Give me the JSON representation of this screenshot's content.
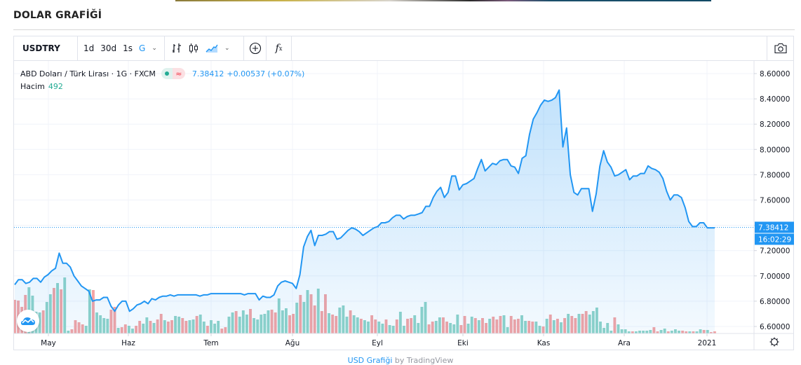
{
  "page": {
    "title": "DOLAR GRAFİĞİ"
  },
  "toolbar": {
    "symbol": "USDTRY",
    "intervals": [
      "1d",
      "30d",
      "1s",
      "G"
    ],
    "active_interval": "G",
    "chart_type_icons": [
      "bar-chart-icon",
      "candlestick-icon",
      "area-chart-icon"
    ],
    "add_indicator_icon": "plus-circle-icon",
    "fx_label": "f",
    "fx_sub": "x",
    "camera_icon": "camera-icon"
  },
  "legend": {
    "symbol_desc": "ABD Doları / Türk Lirası · 1G · FXCM",
    "last_price": "7.38412",
    "change": "+0.00537 (+0.07%)",
    "volume_label": "Hacim",
    "volume_value": "492"
  },
  "price_axis": {
    "ticks": [
      "8.60000",
      "8.40000",
      "8.20000",
      "8.00000",
      "7.80000",
      "7.60000",
      "7.40000",
      "7.20000",
      "7.00000",
      "6.80000",
      "6.60000"
    ],
    "last_price_tag": "7.38412",
    "countdown_tag": "16:02:29"
  },
  "time_axis": {
    "labels": [
      "May",
      "Haz",
      "Tem",
      "Ağu",
      "Eyl",
      "Eki",
      "Kas",
      "Ara",
      "2021"
    ],
    "settings_icon": "gear-icon"
  },
  "footer": {
    "link_text": "USD Grafiği",
    "by_text": "by TradingView"
  },
  "colors": {
    "line": "#2196f3",
    "area_top": "rgba(33,150,243,0.28)",
    "area_bottom": "rgba(33,150,243,0.05)",
    "volume_up": "#8fd3c8",
    "volume_down": "#f4a3a3",
    "tag_bg": "#2196f3",
    "grid": "#f0f3fa"
  },
  "chart_data": {
    "type": "area",
    "title": "ABD Doları / Türk Lirası · 1G · FXCM",
    "xlabel": "",
    "ylabel": "",
    "ylim": [
      6.5,
      8.7
    ],
    "x_tick_labels": [
      "May",
      "Haz",
      "Tem",
      "Ağu",
      "Eyl",
      "Eki",
      "Kas",
      "Ara",
      "2021"
    ],
    "y_tick_labels": [
      "6.60000",
      "6.80000",
      "7.00000",
      "7.20000",
      "7.40000",
      "7.60000",
      "7.80000",
      "8.00000",
      "8.20000",
      "8.40000",
      "8.60000"
    ],
    "grid": true,
    "legend_position": "top-left",
    "last_value": 7.38412,
    "series": [
      {
        "name": "USDTRY close",
        "values": [
          6.93,
          6.97,
          6.97,
          6.94,
          6.95,
          6.98,
          6.98,
          6.95,
          6.99,
          7.01,
          7.04,
          7.06,
          7.18,
          7.1,
          7.1,
          7.07,
          7.0,
          6.96,
          6.92,
          6.9,
          6.88,
          6.8,
          6.81,
          6.81,
          6.83,
          6.83,
          6.76,
          6.72,
          6.77,
          6.8,
          6.8,
          6.72,
          6.74,
          6.77,
          6.78,
          6.8,
          6.78,
          6.82,
          6.81,
          6.83,
          6.84,
          6.84,
          6.85,
          6.84,
          6.85,
          6.85,
          6.85,
          6.85,
          6.85,
          6.85,
          6.84,
          6.85,
          6.85,
          6.86,
          6.86,
          6.86,
          6.86,
          6.86,
          6.86,
          6.86,
          6.86,
          6.86,
          6.85,
          6.86,
          6.86,
          6.86,
          6.81,
          6.84,
          6.83,
          6.83,
          6.85,
          6.92,
          6.95,
          6.96,
          6.95,
          6.94,
          6.9,
          7.01,
          7.23,
          7.31,
          7.36,
          7.24,
          7.32,
          7.32,
          7.33,
          7.35,
          7.35,
          7.29,
          7.3,
          7.33,
          7.36,
          7.38,
          7.37,
          7.35,
          7.32,
          7.34,
          7.36,
          7.38,
          7.39,
          7.42,
          7.42,
          7.43,
          7.46,
          7.48,
          7.48,
          7.45,
          7.47,
          7.48,
          7.48,
          7.49,
          7.5,
          7.55,
          7.55,
          7.62,
          7.67,
          7.7,
          7.62,
          7.66,
          7.79,
          7.79,
          7.68,
          7.72,
          7.73,
          7.75,
          7.77,
          7.85,
          7.92,
          7.83,
          7.86,
          7.89,
          7.88,
          7.91,
          7.92,
          7.92,
          7.87,
          7.86,
          7.81,
          7.93,
          7.95,
          8.12,
          8.24,
          8.29,
          8.35,
          8.39,
          8.38,
          8.39,
          8.41,
          8.47,
          8.02,
          8.17,
          7.8,
          7.66,
          7.64,
          7.69,
          7.69,
          7.69,
          7.51,
          7.65,
          7.87,
          7.99,
          7.9,
          7.86,
          7.79,
          7.8,
          7.82,
          7.84,
          7.76,
          7.79,
          7.79,
          7.81,
          7.81,
          7.87,
          7.85,
          7.84,
          7.82,
          7.77,
          7.67,
          7.6,
          7.64,
          7.64,
          7.62,
          7.54,
          7.43,
          7.39,
          7.39,
          7.42,
          7.42,
          7.38,
          7.38,
          7.38
        ]
      },
      {
        "name": "Hacim",
        "values": [
          48,
          47,
          38,
          55,
          66,
          54,
          31,
          30,
          33,
          45,
          56,
          65,
          72,
          63,
          80,
          4,
          6,
          19,
          16,
          13,
          11,
          63,
          62,
          30,
          26,
          22,
          21,
          34,
          38,
          8,
          9,
          13,
          11,
          7,
          11,
          18,
          14,
          23,
          18,
          15,
          20,
          28,
          19,
          17,
          19,
          25,
          24,
          22,
          18,
          19,
          20,
          25,
          27,
          17,
          11,
          19,
          14,
          18,
          7,
          9,
          24,
          30,
          32,
          24,
          33,
          27,
          35,
          22,
          20,
          27,
          28,
          33,
          34,
          30,
          50,
          33,
          36,
          26,
          28,
          44,
          55,
          45,
          62,
          56,
          40,
          64,
          32,
          56,
          29,
          27,
          25,
          37,
          40,
          24,
          33,
          26,
          23,
          21,
          19,
          17,
          26,
          20,
          17,
          14,
          20,
          12,
          11,
          20,
          31,
          11,
          21,
          22,
          26,
          15,
          38,
          45,
          13,
          17,
          18,
          23,
          23,
          17,
          15,
          13,
          27,
          12,
          25,
          14,
          24,
          22,
          19,
          22,
          15,
          21,
          24,
          20,
          25,
          26,
          9,
          25,
          20,
          21,
          26,
          18,
          18,
          17,
          17,
          11,
          10,
          21,
          27,
          19,
          21,
          16,
          22,
          28,
          25,
          22,
          28,
          28,
          32,
          27,
          32,
          37,
          17,
          8,
          15,
          4,
          23,
          13,
          6,
          6,
          3,
          3,
          3,
          4,
          4,
          4,
          5,
          9,
          3,
          5,
          7,
          3,
          4,
          6,
          4,
          4,
          3,
          3,
          3,
          3,
          6,
          5,
          5,
          2,
          3
        ],
        "colors": "dddduuuuduududuudddduuduuuuddudduudduududdudduudduuduuduuudduuduuuduuuuudduuudduduudduddudduuuduuduudduuduuduudduuuudduudduuudduududduddduuddduudduudududududdudduuuuuuuduuuuduuuuudduuduuudduduududduduudduduuuddduuduudududduuddddddddduu"
      }
    ]
  }
}
